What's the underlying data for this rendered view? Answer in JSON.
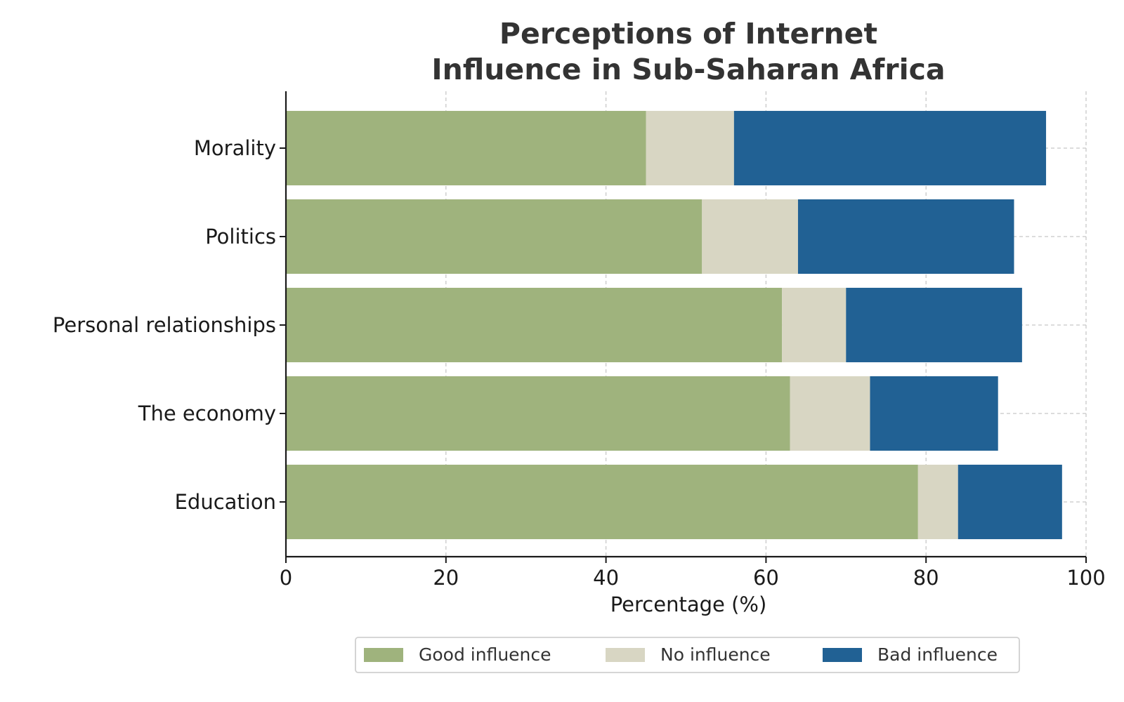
{
  "chart_data": {
    "type": "bar",
    "orientation": "horizontal",
    "stacked": true,
    "title": [
      "Perceptions of Internet",
      "Influence in Sub-Saharan Africa"
    ],
    "xlabel": "Percentage (%)",
    "ylabel": "",
    "xlim": [
      0,
      100
    ],
    "x_ticks": [
      0,
      20,
      40,
      60,
      80,
      100
    ],
    "categories": [
      "Morality",
      "Politics",
      "Personal relationships",
      "The economy",
      "Education"
    ],
    "series": [
      {
        "name": "Good influence",
        "color": "#9fb37d",
        "values": [
          45,
          52,
          62,
          63,
          79
        ]
      },
      {
        "name": "No influence",
        "color": "#d8d6c3",
        "values": [
          11,
          12,
          8,
          10,
          5
        ]
      },
      {
        "name": "Bad influence",
        "color": "#216194",
        "values": [
          39,
          27,
          22,
          16,
          13
        ]
      }
    ],
    "grid": true,
    "legend_position": "bottom-center"
  }
}
